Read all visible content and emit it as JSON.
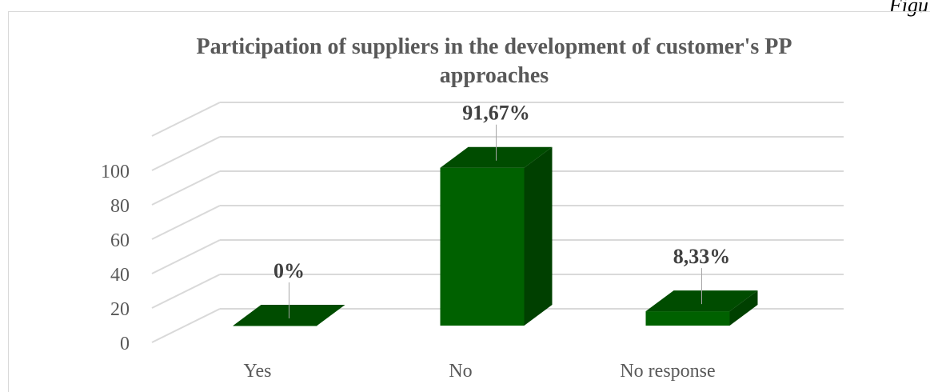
{
  "figure_label": "Figu",
  "chart_data": {
    "type": "bar",
    "title": "Participation of suppliers in the development of customer's PP approaches",
    "title_lines": [
      "Participation of suppliers in the development of customer's PP",
      "approaches"
    ],
    "categories": [
      "Yes",
      "No",
      "No response"
    ],
    "values": [
      0,
      91.67,
      8.33
    ],
    "data_labels": [
      "0%",
      "91,67%",
      "8,33%"
    ],
    "ylim": [
      0,
      100
    ],
    "yticks": [
      0,
      20,
      40,
      60,
      80,
      100
    ],
    "ytick_labels": [
      "0",
      "20",
      "40",
      "60",
      "80",
      "100"
    ],
    "grid": true,
    "style": "3d-column",
    "colors": {
      "front": "#006100",
      "side": "#004000",
      "top": "#004c00",
      "grid": "#d9d9d9",
      "text": "#595959"
    }
  }
}
